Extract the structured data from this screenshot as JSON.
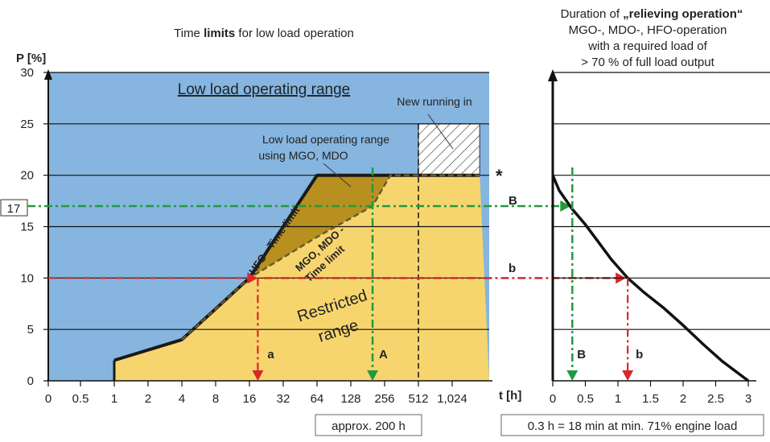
{
  "chart_data": [
    {
      "type": "area",
      "title_pre": "Time ",
      "title_bold": "limits",
      "title_post": " for low load operation",
      "ylabel": "P [%]",
      "xlabel": "",
      "y_ticks": [
        0,
        5,
        10,
        15,
        20,
        25,
        30
      ],
      "ylim": [
        0,
        30
      ],
      "x_ticks": [
        "0",
        "0.5",
        "1",
        "2",
        "4",
        "8",
        "16",
        "32",
        "64",
        "128",
        "256",
        "512",
        "1,024"
      ],
      "x_scale": "log2",
      "grid": true,
      "colors": {
        "low_load": "#86b5e0",
        "restricted": "#f7d56e",
        "mgo_zone": "#b8901f",
        "hfo_line": "#1a1a1a",
        "marker_a": "#d62828",
        "marker_A": "#229a3c"
      },
      "regions": {
        "low_load_label": "Low load operating range",
        "restricted_label_1": "Restricted",
        "restricted_label_2": "range",
        "mgo_label_1": "Low load operating range",
        "mgo_label_2": "using MGO, MDO",
        "new_running_label": "New running in",
        "asterisk": "*"
      },
      "series": [
        {
          "name": "HFO - Time limit",
          "points": [
            [
              1,
              2
            ],
            [
              4,
              4
            ],
            [
              16,
              10
            ],
            [
              32,
              15
            ],
            [
              64,
              20
            ],
            [
              1800,
              20
            ]
          ]
        },
        {
          "name_1": "MGO, MDO -",
          "name_2": "Time limit",
          "points": [
            [
              4,
              4
            ],
            [
              16,
              10
            ],
            [
              64,
              14
            ],
            [
              200,
              17
            ],
            [
              288,
              20
            ],
            [
              1800,
              20
            ]
          ]
        }
      ],
      "new_running_in": {
        "x_from": 512,
        "x_to": 1800,
        "y_from": 20,
        "y_to": 25
      },
      "markers": {
        "a": {
          "label": "a",
          "x": 19,
          "y": 10
        },
        "A": {
          "label": "A",
          "x": 200,
          "y": 17
        }
      },
      "annotation": "approx. 200 h",
      "y_marker": {
        "label": "17",
        "value": 17
      }
    },
    {
      "type": "line",
      "title_l1_pre": "Duration of ",
      "title_l1_bold": "„relieving operation“",
      "title_l2": "MGO-, MDO-, HFO-operation",
      "title_l3": "with a required load of",
      "title_l4": "> 70 % of full load output",
      "xlabel": "t [h]",
      "x_ticks": [
        0,
        0.5,
        1,
        1.5,
        2,
        2.5,
        3
      ],
      "x_tick_labels": [
        "0",
        "0.5",
        "1",
        "1.5",
        "2",
        "2.5",
        "3"
      ],
      "xlim": [
        0,
        3
      ],
      "ylim": [
        0,
        30
      ],
      "y_ticks": [
        0,
        5,
        10,
        15,
        20,
        25,
        30
      ],
      "grid": true,
      "series": [
        {
          "name": "",
          "x": [
            0,
            0.1,
            0.2,
            0.3,
            0.5,
            0.7,
            0.9,
            1.15,
            1.4,
            1.7,
            2.0,
            2.3,
            2.6,
            3.0
          ],
          "y": [
            20,
            18.5,
            17.6,
            16.7,
            15.2,
            13.5,
            11.8,
            10,
            8.6,
            7.1,
            5.4,
            3.6,
            1.9,
            0
          ]
        }
      ],
      "markers": {
        "b": {
          "label": "b",
          "x": 1.15,
          "y": 10
        },
        "B": {
          "label": "B",
          "x": 0.3,
          "y": 17
        }
      },
      "annotation": "0.3 h = 18 min at min. 71% engine load"
    }
  ]
}
